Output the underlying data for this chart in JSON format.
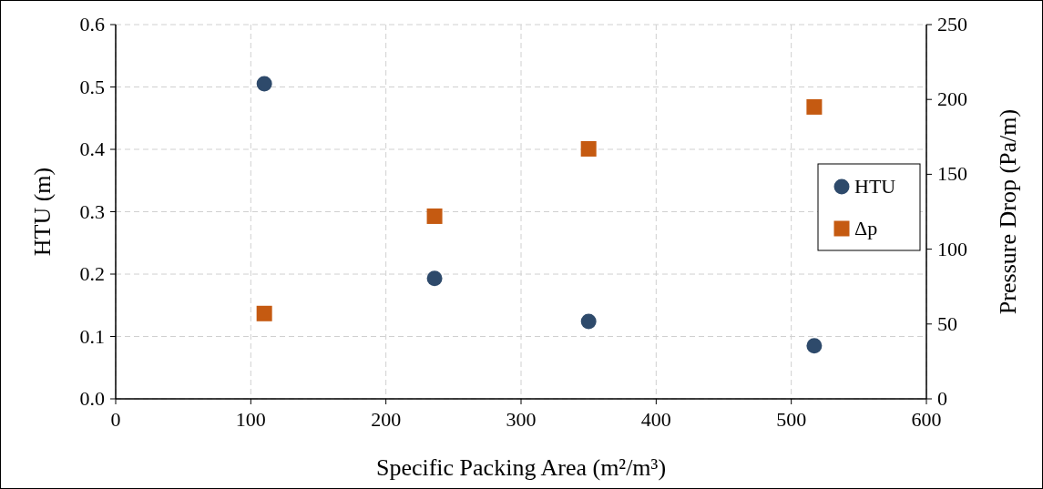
{
  "chart_data": {
    "type": "scatter",
    "xlabel": "Specific Packing Area (m²/m³)",
    "ylabel": "HTU (m)",
    "y2label": "Pressure Drop (Pa/m)",
    "series": [
      {
        "name": "HTU",
        "color": "#2e4a6b",
        "marker": "circle",
        "x": [
          110,
          236,
          350,
          517
        ],
        "values": [
          0.505,
          0.193,
          0.124,
          0.085
        ]
      },
      {
        "name": "Δp",
        "color": "#c55a11",
        "marker": "square",
        "axis": "y2",
        "x": [
          110,
          236,
          350,
          517
        ],
        "values": [
          57,
          122,
          167,
          195
        ]
      }
    ],
    "xlim": [
      0,
      600
    ],
    "xticks": [
      0,
      100,
      200,
      300,
      400,
      500,
      600
    ],
    "ylim": [
      0,
      0.6
    ],
    "yticks": [
      {
        "value": 0,
        "label": "0.0"
      },
      0.1,
      0.2,
      0.3,
      0.4,
      0.5,
      0.6
    ],
    "y2lim": [
      0,
      250
    ],
    "y2ticks": [
      0,
      50,
      100,
      150,
      200,
      250
    ],
    "grid": true,
    "legend": "right"
  }
}
